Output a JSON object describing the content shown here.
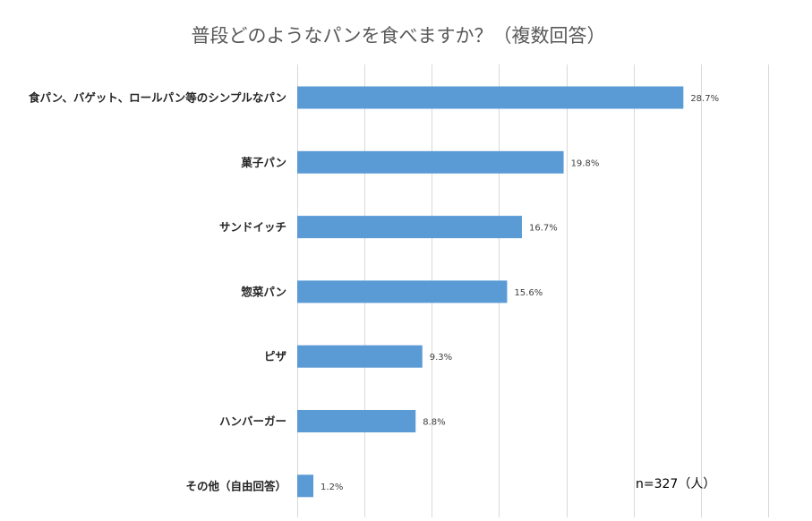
{
  "chart_data": {
    "type": "bar",
    "orientation": "horizontal",
    "title": "普段どのようなパンを食べますか？（複数回答）",
    "categories": [
      "食パン、バゲット、ロールパン等のシンプルなパン",
      "菓子パン",
      "サンドイッチ",
      "惣菜パン",
      "ピザ",
      "ハンバーガー",
      "その他（自由回答）"
    ],
    "values": [
      28.7,
      19.8,
      16.7,
      15.6,
      9.3,
      8.8,
      1.2
    ],
    "value_labels": [
      "28.7%",
      "19.8%",
      "16.7%",
      "15.6%",
      "9.3%",
      "8.8%",
      "1.2%"
    ],
    "xlim": [
      0,
      35
    ],
    "grid": true,
    "legend": "none",
    "annotation": "n=327（人）",
    "bar_color": "#5b9bd5"
  }
}
